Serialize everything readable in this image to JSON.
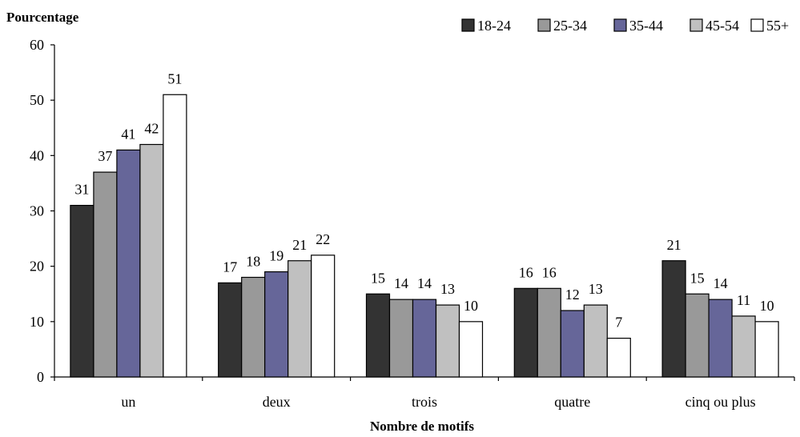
{
  "chart_data": {
    "type": "bar",
    "title": "",
    "ylabel": "Pourcentage",
    "xlabel": "Nombre de motifs",
    "ylim": [
      0,
      60
    ],
    "yticks": [
      0,
      10,
      20,
      30,
      40,
      50,
      60
    ],
    "categories": [
      "un",
      "deux",
      "trois",
      "quatre",
      "cinq ou plus"
    ],
    "legend_position": "top-right",
    "grid": false,
    "data_labels": true,
    "series": [
      {
        "name": "18-24",
        "color": "#333333",
        "values": [
          31,
          17,
          15,
          16,
          21
        ]
      },
      {
        "name": "25-34",
        "color": "#999999",
        "values": [
          37,
          18,
          14,
          16,
          15
        ]
      },
      {
        "name": "35-44",
        "color": "#666699",
        "values": [
          41,
          19,
          14,
          12,
          14
        ]
      },
      {
        "name": "45-54",
        "color": "#c0c0c0",
        "values": [
          42,
          21,
          13,
          13,
          11
        ]
      },
      {
        "name": "55+",
        "color": "#ffffff",
        "values": [
          51,
          22,
          10,
          7,
          10
        ]
      }
    ]
  }
}
